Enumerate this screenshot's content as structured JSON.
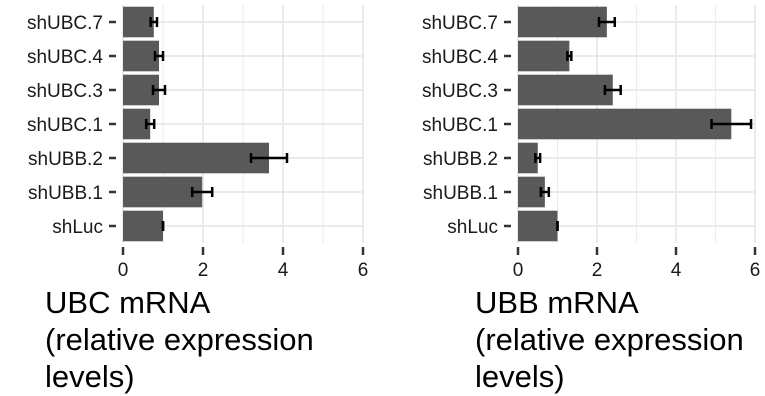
{
  "chart_data": [
    {
      "type": "bar",
      "orientation": "horizontal",
      "title": "",
      "xlabel": "UBC mRNA\n(relative expression\nlevels)",
      "ylabel": "",
      "categories": [
        "shLuc",
        "shUBB.1",
        "shUBB.2",
        "shUBC.1",
        "shUBC.3",
        "shUBC.4",
        "shUBC.7"
      ],
      "values": [
        1.0,
        1.98,
        3.65,
        0.68,
        0.9,
        0.9,
        0.77
      ],
      "error": [
        0.0,
        0.25,
        0.45,
        0.1,
        0.15,
        0.1,
        0.08
      ],
      "xlim": [
        0,
        6
      ],
      "xticks": [
        "0",
        "2",
        "4",
        "6"
      ],
      "grid": true,
      "bar_color": "#595959",
      "grid_color": "#ebebeb"
    },
    {
      "type": "bar",
      "orientation": "horizontal",
      "title": "",
      "xlabel": "UBB mRNA\n(relative expression\nlevels)",
      "ylabel": "",
      "categories": [
        "shLuc",
        "shUBB.1",
        "shUBB.2",
        "shUBC.1",
        "shUBC.3",
        "shUBC.4",
        "shUBC.7"
      ],
      "values": [
        1.0,
        0.68,
        0.5,
        5.4,
        2.4,
        1.3,
        2.25
      ],
      "error": [
        0.0,
        0.1,
        0.06,
        0.5,
        0.2,
        0.05,
        0.2
      ],
      "xlim": [
        0,
        6
      ],
      "xticks": [
        "0",
        "2",
        "4",
        "6"
      ],
      "grid": true,
      "bar_color": "#595959",
      "grid_color": "#ebebeb"
    }
  ]
}
